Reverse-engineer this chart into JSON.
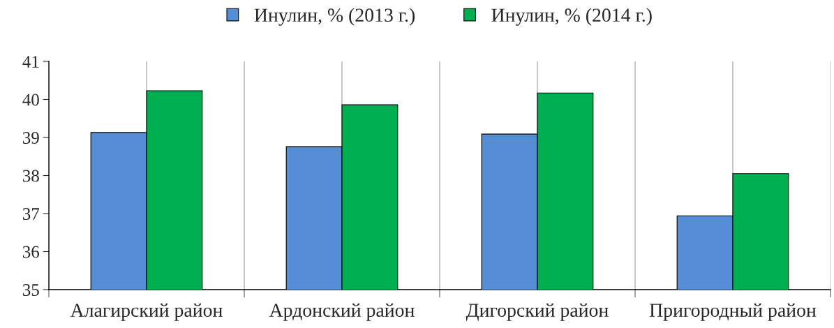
{
  "chart_data": {
    "type": "bar",
    "categories": [
      "Алагирский район",
      "Ардонский район",
      "Дигорский район",
      "Пригородный район"
    ],
    "series": [
      {
        "name": "Инулин, % (2013 г.)",
        "color": "#558ed5",
        "values": [
          39.13,
          38.76,
          39.09,
          36.94
        ]
      },
      {
        "name": "Инулин, % (2014 г.)",
        "color": "#00b050",
        "values": [
          40.23,
          39.86,
          40.17,
          38.05
        ]
      }
    ],
    "ylim": [
      35,
      41
    ],
    "yticks": [
      35,
      36,
      37,
      38,
      39,
      40,
      41
    ],
    "grid": "x",
    "legend": "top"
  }
}
